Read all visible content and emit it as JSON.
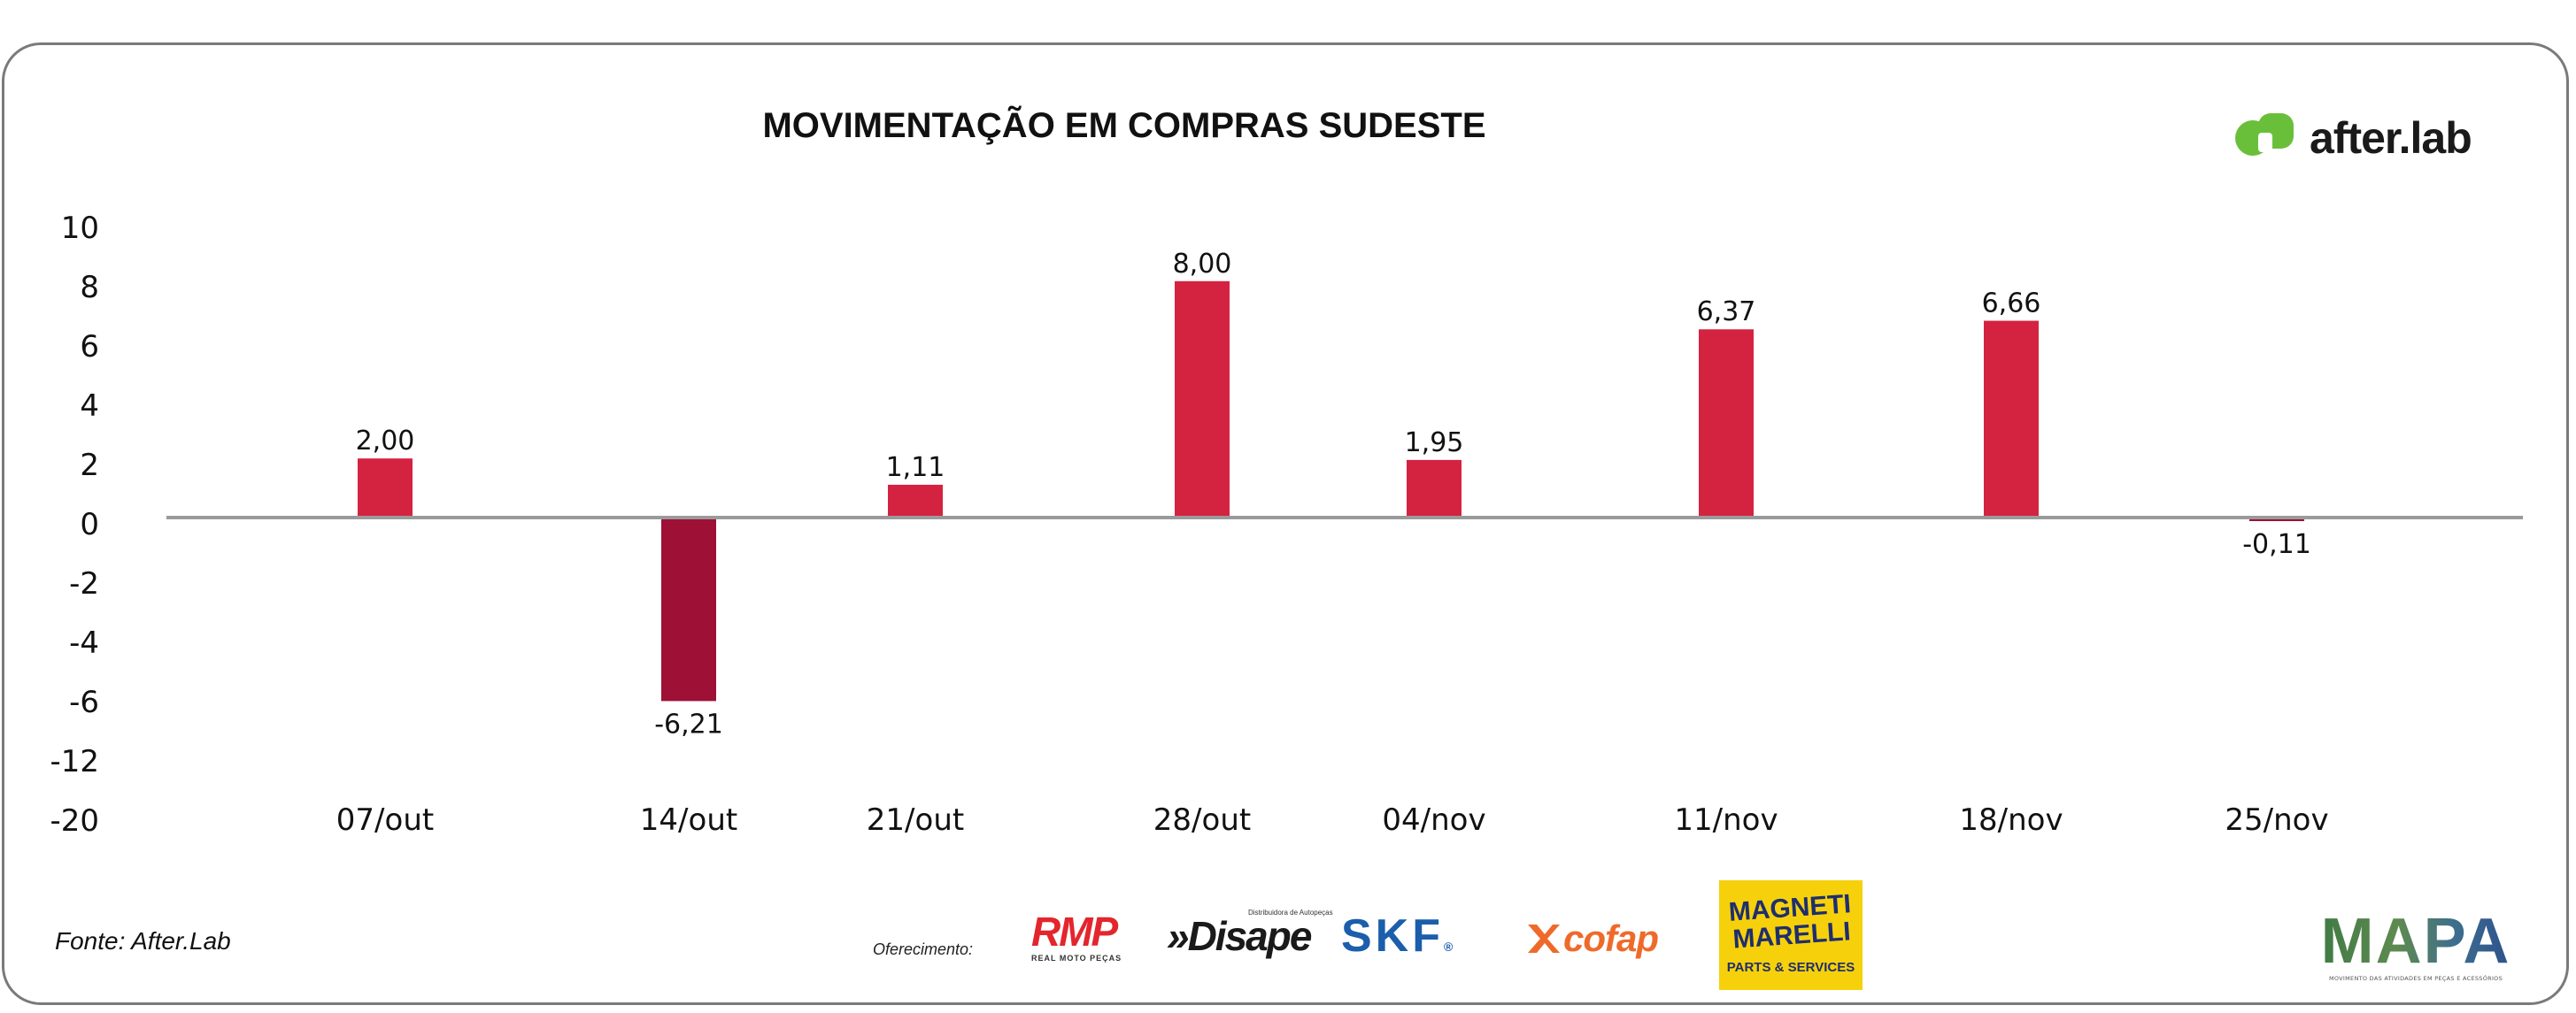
{
  "title": "MOVIMENTAÇÃO EM COMPRAS SUDESTE",
  "brand": {
    "name": "after.lab",
    "icon": "after-lab-logo-icon",
    "color": "#6abf3a"
  },
  "source": "Fonte: After.Lab",
  "sponsors": {
    "label": "Oferecimento:",
    "rmp": {
      "name": "RMP",
      "tagline": "REAL MOTO PEÇAS"
    },
    "disape": {
      "name": "»Disape",
      "tagline": "Distribuidora de Autopeças"
    },
    "skf": {
      "name": "SKF",
      "mark": "®"
    },
    "cofap": {
      "name": "cofap"
    },
    "magneti": {
      "name": "MAGNETI MARELLI",
      "tagline": "PARTS & SERVICES"
    }
  },
  "mapa": {
    "name": "MAPA",
    "tagline": "MOVIMENTO DAS ATIVIDADES EM PEÇAS E ACESSÓRIOS"
  },
  "colors": {
    "positive": "#d42341",
    "negative": "#9e1036",
    "axis": "#9a9a9a"
  },
  "chart_data": {
    "type": "bar",
    "title": "MOVIMENTAÇÃO EM COMPRAS SUDESTE",
    "categories": [
      "07/out",
      "14/out",
      "21/out",
      "28/out",
      "04/nov",
      "11/nov",
      "18/nov",
      "25/nov"
    ],
    "values": [
      2.0,
      -6.21,
      1.11,
      8.0,
      1.95,
      6.37,
      6.66,
      -0.11
    ],
    "value_labels": [
      "2,00",
      "-6,21",
      "1,11",
      "8,00",
      "1,95",
      "6,37",
      "6,66",
      "-0,11"
    ],
    "y_ticks": [
      "10",
      "8",
      "6",
      "4",
      "2",
      "0",
      "-2",
      "-4",
      "-6",
      "-12",
      "-20"
    ],
    "xlabel": "",
    "ylabel": "",
    "grid": false,
    "legend": "none"
  }
}
